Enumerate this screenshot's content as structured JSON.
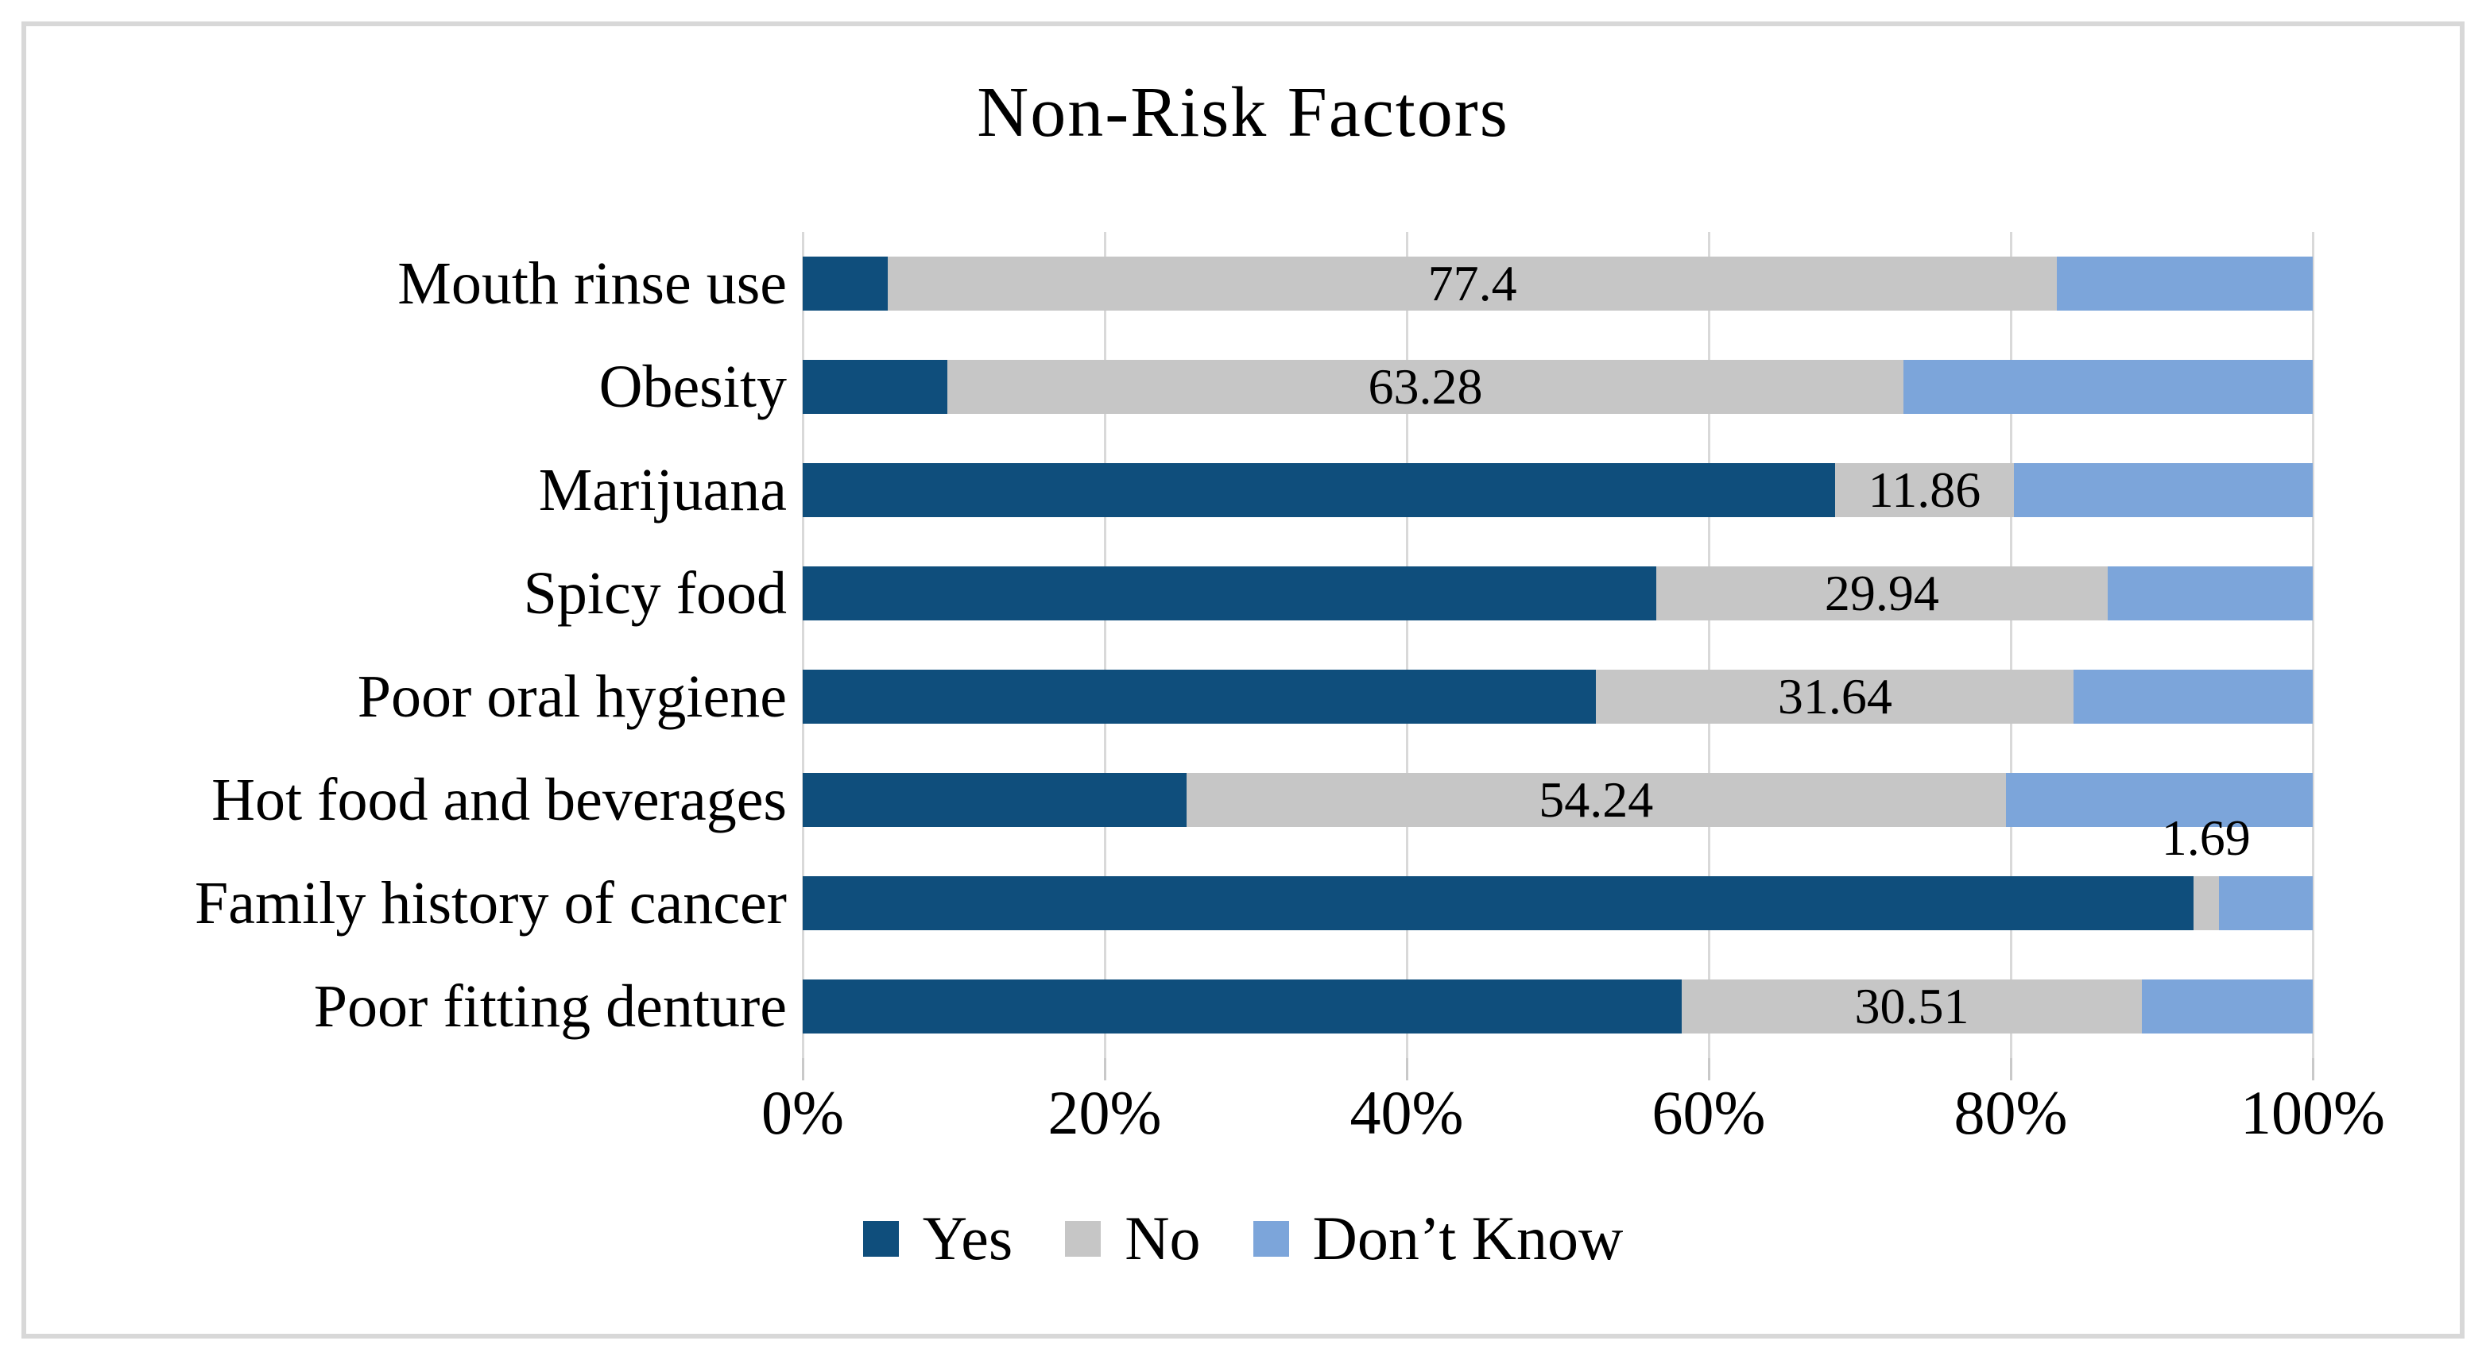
{
  "figure": {
    "background": "#FFFFFF",
    "border_color": "#D8D8D8"
  },
  "chart_data": {
    "type": "bar",
    "variant": "horizontal_stacked_100_percent",
    "title": "Non-Risk Factors",
    "categories": [
      "Mouth rinse use",
      "Obesity",
      "Marijuana",
      "Spicy food",
      "Poor oral hygiene",
      "Hot food and beverages",
      "Family history of cancer",
      "Poor fitting denture"
    ],
    "series": [
      {
        "name": "Yes",
        "color": "#0F4E7C",
        "values": [
          5.65,
          9.6,
          68.36,
          56.5,
          52.54,
          25.42,
          92.09,
          58.19
        ]
      },
      {
        "name": "No",
        "color": "#C6C6C6",
        "values": [
          77.4,
          63.28,
          11.86,
          29.94,
          31.64,
          54.24,
          1.69,
          30.51
        ]
      },
      {
        "name": "Don’t Know",
        "color": "#7CA5DA",
        "values": [
          16.95,
          27.12,
          19.77,
          13.56,
          15.82,
          20.34,
          6.21,
          11.3
        ]
      }
    ],
    "data_labels": {
      "shown_for_series": "No",
      "values": [
        "77.4",
        "63.28",
        "11.86",
        "29.94",
        "31.64",
        "54.24",
        "1.69",
        "30.51"
      ]
    },
    "x_axis": {
      "ticks": [
        "0%",
        "20%",
        "40%",
        "60%",
        "80%",
        "100%"
      ],
      "min": 0,
      "max": 100
    },
    "gridlines": {
      "orientation": "vertical",
      "color": "#D9D9D9"
    },
    "legend": {
      "position": "bottom",
      "items": [
        "Yes",
        "No",
        "Don’t Know"
      ]
    }
  }
}
